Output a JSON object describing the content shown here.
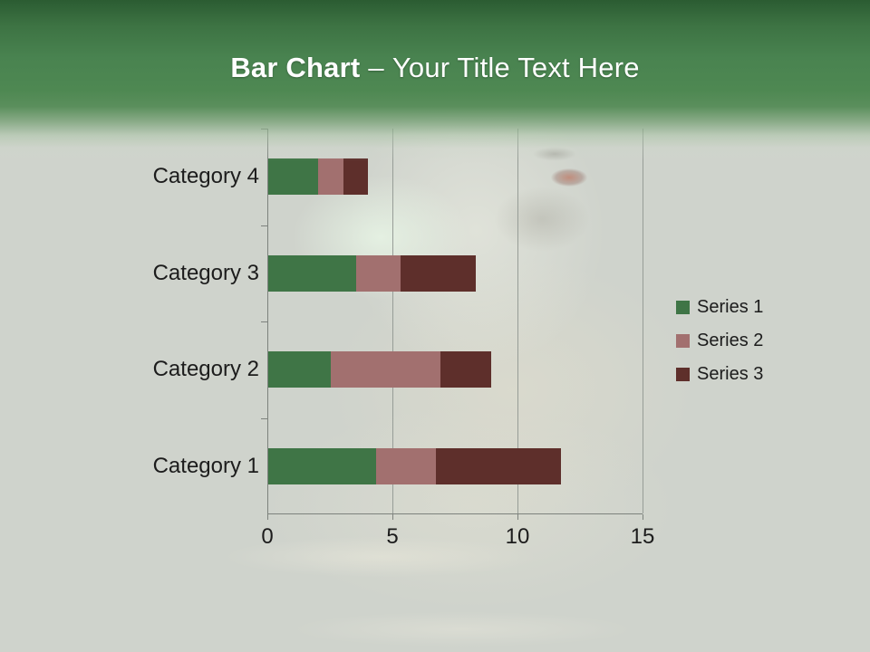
{
  "slide": {
    "title": {
      "bold": "Bar Chart",
      "separator": "–",
      "rest": "Your Title Text Here"
    }
  },
  "colors": {
    "header_green_dark": "#2b5c32",
    "header_green": "#4e8852",
    "slide_background": "#cfd3cc",
    "axis_line": "#7d827d",
    "gridline": "#979d97",
    "label_text": "#1c1c1c",
    "title_text": "#ffffff"
  },
  "chart_data": {
    "type": "bar",
    "orientation": "horizontal",
    "stacked": true,
    "title": "",
    "categories": [
      "Category 1",
      "Category 2",
      "Category 3",
      "Category 4"
    ],
    "category_order_top_to_bottom": [
      "Category 4",
      "Category 3",
      "Category 2",
      "Category 1"
    ],
    "series": [
      {
        "name": "Series 1",
        "color": "#3F7546",
        "values": [
          4.3,
          2.5,
          3.5,
          2
        ]
      },
      {
        "name": "Series 2",
        "color": "#A2706F",
        "values": [
          2.4,
          4.4,
          1.8,
          1
        ]
      },
      {
        "name": "Series 3",
        "color": "#5E2F2B",
        "values": [
          5,
          2,
          3,
          1
        ]
      }
    ],
    "xlim": [
      0,
      15
    ],
    "xticks": [
      0,
      5,
      10,
      15
    ],
    "gridlines": true,
    "legend_position": "right"
  }
}
